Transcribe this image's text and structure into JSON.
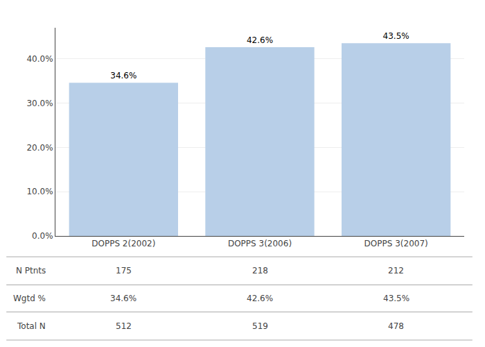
{
  "chart_data": {
    "type": "bar",
    "categories": [
      "DOPPS 2(2002)",
      "DOPPS 3(2006)",
      "DOPPS 3(2007)"
    ],
    "values": [
      34.6,
      42.6,
      43.5
    ],
    "value_labels": [
      "34.6%",
      "42.6%",
      "43.5%"
    ],
    "data_labels": true,
    "color": "#b8cfe8",
    "ylim": [
      0,
      47
    ],
    "yticks": [
      {
        "value": 0,
        "label": "0.0%"
      },
      {
        "value": 10,
        "label": "10.0%"
      },
      {
        "value": 20,
        "label": "20.0%"
      },
      {
        "value": 30,
        "label": "30.0%"
      },
      {
        "value": 40,
        "label": "40.0%"
      }
    ],
    "grid": true,
    "table": {
      "row_labels": [
        "N Ptnts",
        "Wgtd %",
        "Total N"
      ],
      "rows": [
        [
          "175",
          "218",
          "212"
        ],
        [
          "34.6%",
          "42.6%",
          "43.5%"
        ],
        [
          "512",
          "519",
          "478"
        ]
      ]
    }
  }
}
